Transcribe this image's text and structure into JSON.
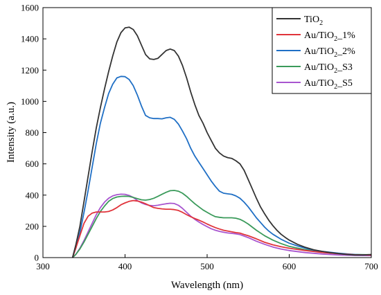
{
  "chart_data": {
    "type": "line",
    "title": "",
    "xlabel": "Wavelength (nm)",
    "ylabel": "Intensity (a.u.)",
    "xlim": [
      300,
      700
    ],
    "ylim": [
      0,
      1600
    ],
    "xticks": [
      "300",
      "400",
      "500",
      "600",
      "700"
    ],
    "yticks": [
      "0",
      "200",
      "400",
      "600",
      "800",
      "1000",
      "1200",
      "1400",
      "1600"
    ],
    "grid": false,
    "legend_position": "top-right",
    "series": [
      {
        "name": "TiO2",
        "legend_main": "TiO",
        "legend_sub": "2",
        "legend_suffix": "",
        "color": "#333333",
        "points": [
          [
            336,
            0
          ],
          [
            340,
            80
          ],
          [
            345,
            200
          ],
          [
            350,
            360
          ],
          [
            355,
            520
          ],
          [
            360,
            680
          ],
          [
            365,
            830
          ],
          [
            370,
            960
          ],
          [
            375,
            1080
          ],
          [
            380,
            1190
          ],
          [
            385,
            1290
          ],
          [
            390,
            1380
          ],
          [
            395,
            1440
          ],
          [
            400,
            1470
          ],
          [
            405,
            1475
          ],
          [
            410,
            1460
          ],
          [
            415,
            1420
          ],
          [
            420,
            1360
          ],
          [
            425,
            1300
          ],
          [
            430,
            1272
          ],
          [
            435,
            1268
          ],
          [
            440,
            1275
          ],
          [
            445,
            1300
          ],
          [
            450,
            1325
          ],
          [
            455,
            1335
          ],
          [
            460,
            1325
          ],
          [
            465,
            1290
          ],
          [
            470,
            1230
          ],
          [
            475,
            1150
          ],
          [
            480,
            1060
          ],
          [
            485,
            980
          ],
          [
            490,
            910
          ],
          [
            495,
            860
          ],
          [
            500,
            800
          ],
          [
            505,
            750
          ],
          [
            510,
            700
          ],
          [
            515,
            670
          ],
          [
            520,
            650
          ],
          [
            525,
            640
          ],
          [
            530,
            635
          ],
          [
            535,
            620
          ],
          [
            540,
            600
          ],
          [
            545,
            560
          ],
          [
            550,
            500
          ],
          [
            555,
            440
          ],
          [
            560,
            380
          ],
          [
            565,
            325
          ],
          [
            570,
            280
          ],
          [
            575,
            240
          ],
          [
            580,
            205
          ],
          [
            585,
            175
          ],
          [
            590,
            150
          ],
          [
            595,
            130
          ],
          [
            600,
            112
          ],
          [
            610,
            85
          ],
          [
            620,
            65
          ],
          [
            630,
            50
          ],
          [
            640,
            40
          ],
          [
            650,
            32
          ],
          [
            660,
            26
          ],
          [
            670,
            20
          ],
          [
            680,
            17
          ],
          [
            690,
            17
          ],
          [
            700,
            20
          ]
        ]
      },
      {
        "name": "Au/TiO2_1%",
        "legend_main": "Au/TiO",
        "legend_sub": "2",
        "legend_suffix": "_1%",
        "color": "#e0333a",
        "points": [
          [
            336,
            0
          ],
          [
            340,
            60
          ],
          [
            345,
            140
          ],
          [
            350,
            220
          ],
          [
            355,
            265
          ],
          [
            360,
            285
          ],
          [
            365,
            292
          ],
          [
            370,
            292
          ],
          [
            375,
            292
          ],
          [
            380,
            295
          ],
          [
            385,
            305
          ],
          [
            390,
            320
          ],
          [
            395,
            338
          ],
          [
            400,
            350
          ],
          [
            405,
            360
          ],
          [
            410,
            365
          ],
          [
            415,
            362
          ],
          [
            420,
            355
          ],
          [
            425,
            345
          ],
          [
            430,
            332
          ],
          [
            435,
            320
          ],
          [
            440,
            315
          ],
          [
            445,
            312
          ],
          [
            450,
            310
          ],
          [
            455,
            310
          ],
          [
            460,
            307
          ],
          [
            465,
            302
          ],
          [
            470,
            290
          ],
          [
            475,
            275
          ],
          [
            480,
            262
          ],
          [
            485,
            250
          ],
          [
            490,
            240
          ],
          [
            495,
            228
          ],
          [
            500,
            215
          ],
          [
            505,
            203
          ],
          [
            510,
            192
          ],
          [
            515,
            183
          ],
          [
            520,
            175
          ],
          [
            525,
            170
          ],
          [
            530,
            165
          ],
          [
            535,
            160
          ],
          [
            540,
            157
          ],
          [
            545,
            148
          ],
          [
            550,
            140
          ],
          [
            560,
            120
          ],
          [
            570,
            98
          ],
          [
            580,
            82
          ],
          [
            590,
            70
          ],
          [
            600,
            60
          ],
          [
            620,
            45
          ],
          [
            640,
            33
          ],
          [
            660,
            25
          ],
          [
            680,
            18
          ],
          [
            700,
            16
          ]
        ]
      },
      {
        "name": "Au/TiO2_2%",
        "legend_main": "Au/TiO",
        "legend_sub": "2",
        "legend_suffix": "_2%",
        "color": "#1f6fc5",
        "points": [
          [
            336,
            0
          ],
          [
            340,
            60
          ],
          [
            345,
            160
          ],
          [
            350,
            290
          ],
          [
            355,
            430
          ],
          [
            360,
            580
          ],
          [
            365,
            730
          ],
          [
            370,
            860
          ],
          [
            375,
            960
          ],
          [
            380,
            1050
          ],
          [
            385,
            1110
          ],
          [
            390,
            1150
          ],
          [
            395,
            1160
          ],
          [
            400,
            1158
          ],
          [
            405,
            1140
          ],
          [
            410,
            1100
          ],
          [
            415,
            1040
          ],
          [
            420,
            970
          ],
          [
            425,
            910
          ],
          [
            430,
            895
          ],
          [
            435,
            890
          ],
          [
            440,
            890
          ],
          [
            445,
            888
          ],
          [
            450,
            895
          ],
          [
            455,
            898
          ],
          [
            460,
            885
          ],
          [
            465,
            855
          ],
          [
            470,
            810
          ],
          [
            475,
            760
          ],
          [
            480,
            700
          ],
          [
            485,
            650
          ],
          [
            490,
            610
          ],
          [
            495,
            570
          ],
          [
            500,
            530
          ],
          [
            505,
            490
          ],
          [
            510,
            455
          ],
          [
            515,
            425
          ],
          [
            520,
            412
          ],
          [
            525,
            408
          ],
          [
            530,
            405
          ],
          [
            535,
            395
          ],
          [
            540,
            380
          ],
          [
            545,
            355
          ],
          [
            550,
            325
          ],
          [
            555,
            290
          ],
          [
            560,
            255
          ],
          [
            565,
            225
          ],
          [
            570,
            195
          ],
          [
            575,
            170
          ],
          [
            580,
            150
          ],
          [
            590,
            118
          ],
          [
            600,
            92
          ],
          [
            610,
            75
          ],
          [
            620,
            60
          ],
          [
            630,
            48
          ],
          [
            640,
            40
          ],
          [
            660,
            28
          ],
          [
            680,
            20
          ],
          [
            700,
            16
          ]
        ]
      },
      {
        "name": "Au/TiO2_S3",
        "legend_main": "Au/TiO",
        "legend_sub": "2",
        "legend_suffix": "_S3",
        "color": "#3a9a5a",
        "points": [
          [
            336,
            0
          ],
          [
            340,
            20
          ],
          [
            345,
            55
          ],
          [
            350,
            100
          ],
          [
            355,
            150
          ],
          [
            360,
            200
          ],
          [
            365,
            250
          ],
          [
            370,
            295
          ],
          [
            375,
            330
          ],
          [
            380,
            360
          ],
          [
            385,
            378
          ],
          [
            390,
            388
          ],
          [
            395,
            392
          ],
          [
            400,
            393
          ],
          [
            405,
            392
          ],
          [
            410,
            385
          ],
          [
            415,
            377
          ],
          [
            420,
            370
          ],
          [
            425,
            368
          ],
          [
            430,
            372
          ],
          [
            435,
            380
          ],
          [
            440,
            392
          ],
          [
            445,
            405
          ],
          [
            450,
            418
          ],
          [
            455,
            428
          ],
          [
            460,
            430
          ],
          [
            465,
            425
          ],
          [
            470,
            412
          ],
          [
            475,
            392
          ],
          [
            480,
            368
          ],
          [
            485,
            345
          ],
          [
            490,
            325
          ],
          [
            495,
            305
          ],
          [
            500,
            290
          ],
          [
            505,
            275
          ],
          [
            510,
            262
          ],
          [
            515,
            258
          ],
          [
            520,
            255
          ],
          [
            525,
            255
          ],
          [
            530,
            255
          ],
          [
            535,
            252
          ],
          [
            540,
            245
          ],
          [
            545,
            232
          ],
          [
            550,
            215
          ],
          [
            560,
            175
          ],
          [
            570,
            140
          ],
          [
            580,
            112
          ],
          [
            590,
            90
          ],
          [
            600,
            72
          ],
          [
            620,
            50
          ],
          [
            640,
            35
          ],
          [
            660,
            25
          ],
          [
            680,
            20
          ],
          [
            700,
            18
          ]
        ]
      },
      {
        "name": "Au/TiO2_S5",
        "legend_main": "Au/TiO",
        "legend_sub": "2",
        "legend_suffix": "_S5",
        "color": "#a855cf",
        "points": [
          [
            336,
            0
          ],
          [
            340,
            20
          ],
          [
            345,
            60
          ],
          [
            350,
            110
          ],
          [
            355,
            165
          ],
          [
            360,
            220
          ],
          [
            365,
            275
          ],
          [
            370,
            320
          ],
          [
            375,
            355
          ],
          [
            380,
            380
          ],
          [
            385,
            395
          ],
          [
            390,
            403
          ],
          [
            395,
            406
          ],
          [
            400,
            405
          ],
          [
            405,
            398
          ],
          [
            410,
            385
          ],
          [
            415,
            365
          ],
          [
            420,
            350
          ],
          [
            425,
            340
          ],
          [
            430,
            334
          ],
          [
            435,
            332
          ],
          [
            440,
            335
          ],
          [
            445,
            340
          ],
          [
            450,
            345
          ],
          [
            455,
            348
          ],
          [
            460,
            346
          ],
          [
            465,
            335
          ],
          [
            470,
            315
          ],
          [
            475,
            290
          ],
          [
            480,
            265
          ],
          [
            485,
            245
          ],
          [
            490,
            228
          ],
          [
            495,
            212
          ],
          [
            500,
            198
          ],
          [
            505,
            185
          ],
          [
            510,
            175
          ],
          [
            515,
            168
          ],
          [
            520,
            162
          ],
          [
            525,
            158
          ],
          [
            530,
            155
          ],
          [
            535,
            152
          ],
          [
            540,
            147
          ],
          [
            545,
            138
          ],
          [
            550,
            128
          ],
          [
            560,
            105
          ],
          [
            570,
            85
          ],
          [
            580,
            68
          ],
          [
            590,
            55
          ],
          [
            600,
            45
          ],
          [
            620,
            32
          ],
          [
            640,
            23
          ],
          [
            660,
            17
          ],
          [
            680,
            14
          ],
          [
            700,
            13
          ]
        ]
      }
    ]
  }
}
